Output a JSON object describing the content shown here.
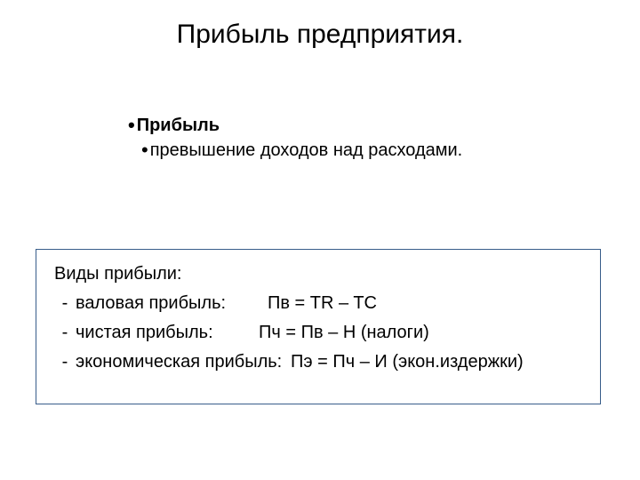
{
  "title": "Прибыль предприятия.",
  "definition": {
    "term": "Прибыль",
    "meaning": "превышение доходов над расходами."
  },
  "box": {
    "heading": "Виды прибыли:",
    "items": [
      {
        "label": "валовая прибыль:",
        "formula": "Пв = TR – TC"
      },
      {
        "label": "чистая прибыль:",
        "formula": "Пч = Пв – Н (налоги)"
      },
      {
        "label": "экономическая прибыль:",
        "formula": "Пэ = Пч – И (экон.издержки)"
      }
    ]
  },
  "style": {
    "title_fontsize": 30,
    "body_fontsize": 20,
    "text_color": "#000000",
    "box_border_color": "#385d8a",
    "background_color": "#ffffff"
  }
}
